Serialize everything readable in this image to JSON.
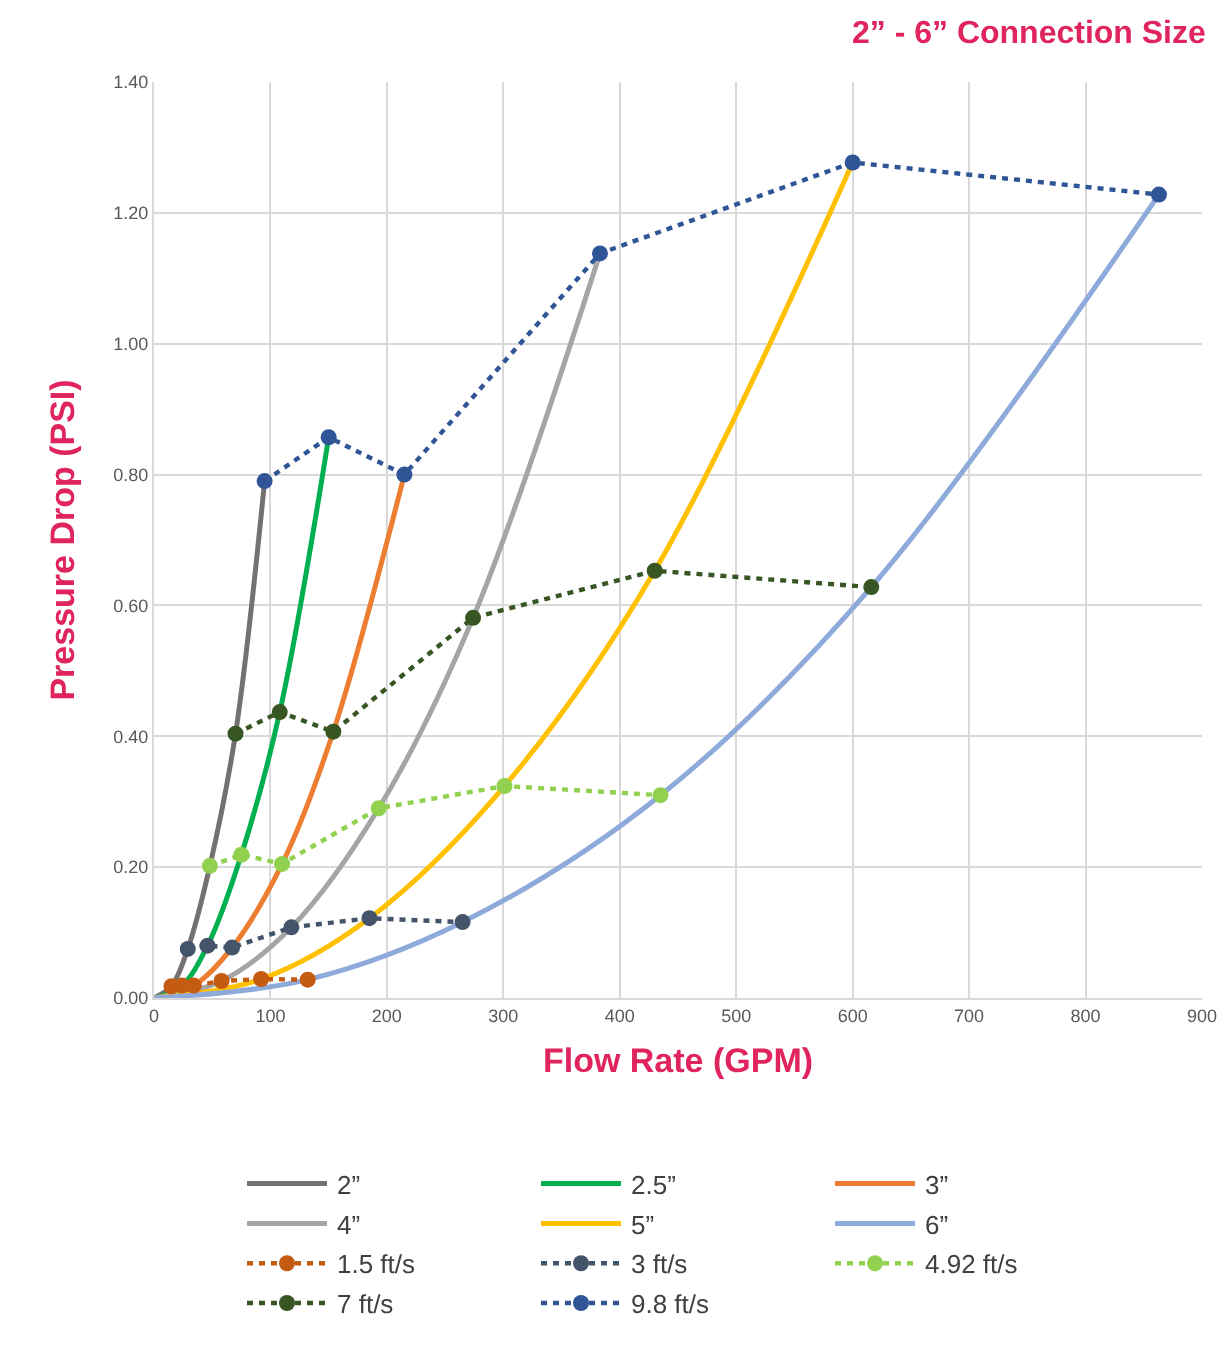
{
  "chart_data": {
    "type": "line",
    "title": "2” - 6” Connection Size",
    "xlabel": "Flow Rate (GPM)",
    "ylabel": "Pressure Drop (PSI)",
    "xlim": [
      0,
      900
    ],
    "xticks": [
      0,
      100,
      200,
      300,
      400,
      500,
      600,
      700,
      800,
      900
    ],
    "ylim": [
      0,
      1.4
    ],
    "yticks": [
      {
        "value": 0,
        "label": "0.00"
      },
      {
        "value": 0.2,
        "label": "0.20"
      },
      {
        "value": 0.4,
        "label": "0.40"
      },
      {
        "value": 0.6,
        "label": "0.60"
      },
      {
        "value": 0.8,
        "label": "0.80"
      },
      {
        "value": 1,
        "label": "1.00"
      },
      {
        "value": 1.2,
        "label": "1.20"
      },
      {
        "value": 1.4,
        "label": "1.40"
      }
    ],
    "grid": true,
    "legend": "bottom",
    "series": [
      {
        "name": "2”",
        "color": "#767171",
        "marker": "none",
        "line_style": "solid",
        "x": [
          0,
          15,
          29,
          48,
          70,
          95
        ],
        "values": [
          0,
          0.018,
          0.075,
          0.202,
          0.404,
          0.79
        ]
      },
      {
        "name": "2.5”",
        "color": "#00b050",
        "marker": "none",
        "line_style": "solid",
        "x": [
          0,
          24,
          46,
          75,
          108,
          150
        ],
        "values": [
          0,
          0.019,
          0.08,
          0.219,
          0.437,
          0.857
        ]
      },
      {
        "name": "3”",
        "color": "#ed7d31",
        "marker": "none",
        "line_style": "solid",
        "x": [
          0,
          34,
          67,
          110,
          154,
          215
        ],
        "values": [
          0,
          0.019,
          0.077,
          0.205,
          0.407,
          0.8
        ]
      },
      {
        "name": "4”",
        "color": "#a5a5a5",
        "marker": "none",
        "line_style": "solid",
        "x": [
          0,
          58,
          118,
          193,
          274,
          383
        ],
        "values": [
          0,
          0.026,
          0.108,
          0.29,
          0.581,
          1.138
        ]
      },
      {
        "name": "5”",
        "color": "#ffc000",
        "marker": "none",
        "line_style": "solid",
        "x": [
          0,
          92,
          185,
          301,
          430,
          600
        ],
        "values": [
          0,
          0.029,
          0.122,
          0.324,
          0.653,
          1.277
        ]
      },
      {
        "name": "6”",
        "color": "#8eaadb",
        "marker": "none",
        "line_style": "solid",
        "x": [
          0,
          132,
          265,
          435,
          616,
          863
        ],
        "values": [
          0,
          0.028,
          0.116,
          0.31,
          0.628,
          1.228
        ]
      },
      {
        "name": "1.5 ft/s",
        "color": "#c55a11",
        "marker": "circle",
        "line_style": "dotted",
        "x": [
          15,
          24,
          34,
          58,
          92,
          132
        ],
        "values": [
          0.018,
          0.019,
          0.019,
          0.026,
          0.029,
          0.028
        ]
      },
      {
        "name": "3 ft/s",
        "color": "#44546a",
        "marker": "circle",
        "line_style": "dotted",
        "x": [
          29,
          46,
          67,
          118,
          185,
          265
        ],
        "values": [
          0.075,
          0.08,
          0.077,
          0.108,
          0.122,
          0.116
        ]
      },
      {
        "name": "4.92 ft/s",
        "color": "#92d050",
        "marker": "circle",
        "line_style": "dotted",
        "x": [
          48,
          75,
          110,
          193,
          301,
          435
        ],
        "values": [
          0.202,
          0.219,
          0.205,
          0.29,
          0.324,
          0.31
        ]
      },
      {
        "name": "7 ft/s",
        "color": "#375623",
        "marker": "circle",
        "line_style": "dotted",
        "x": [
          70,
          108,
          154,
          274,
          430,
          616
        ],
        "values": [
          0.404,
          0.437,
          0.407,
          0.581,
          0.653,
          0.628
        ]
      },
      {
        "name": "9.8 ft/s",
        "color": "#2f5597",
        "marker": "circle",
        "line_style": "dotted",
        "x": [
          95,
          150,
          215,
          383,
          600,
          863
        ],
        "values": [
          0.79,
          0.857,
          0.8,
          1.138,
          1.277,
          1.228
        ]
      }
    ]
  }
}
